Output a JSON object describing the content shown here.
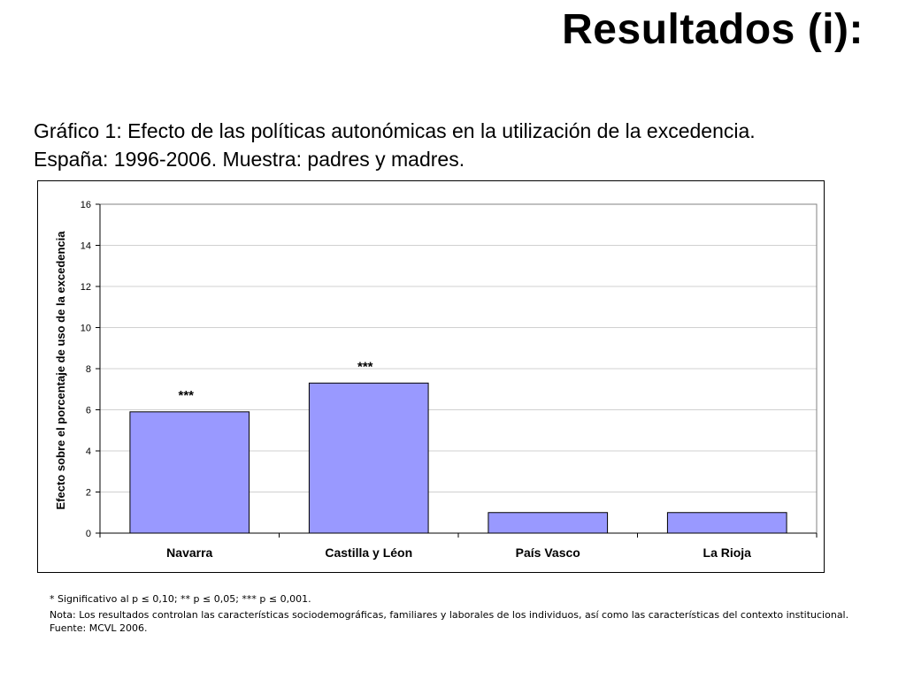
{
  "slide": {
    "title": "Resultados (i):",
    "subtitle_line1": "Gráfico 1: Efecto de las políticas autonómicas en la utilización de la excedencia.",
    "subtitle_line2": "España: 1996-2006. Muestra: padres y madres."
  },
  "notes": {
    "significance": "* Significativo al p ≤ 0,10; ** p ≤ 0,05; *** p ≤ 0,001.",
    "note": "Nota: Los resultados controlan las características sociodemográficas, familiares y laborales de los individuos, así como las características del contexto institucional.",
    "source": "Fuente: MCVL 2006."
  },
  "chart_data": {
    "type": "bar",
    "categories": [
      "Navarra",
      "Castilla y Léon",
      "País Vasco",
      "La Rioja"
    ],
    "values": [
      5.9,
      7.3,
      1.0,
      1.0
    ],
    "annotations": [
      "***",
      "***",
      "",
      ""
    ],
    "title": "",
    "xlabel": "",
    "ylabel": "Efecto sobre el porcentaje de uso de la excedencia",
    "ylim": [
      0,
      16
    ],
    "yticks": [
      0,
      2,
      4,
      6,
      8,
      10,
      12,
      14,
      16
    ],
    "grid": true,
    "bar_color": "#9999ff",
    "legend": "none"
  }
}
